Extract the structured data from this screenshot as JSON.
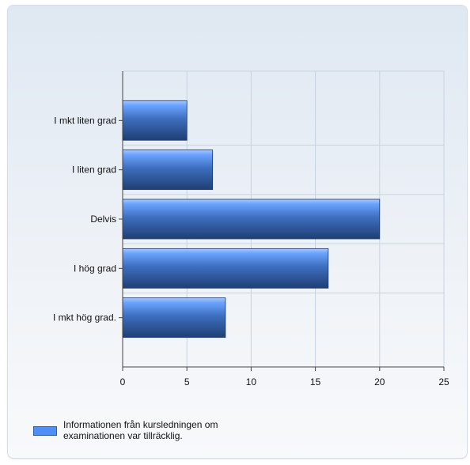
{
  "chart_data": {
    "type": "bar",
    "orientation": "horizontal",
    "categories": [
      "I mkt liten grad",
      "I liten grad",
      "Delvis",
      "I hög grad",
      "I mkt hög grad."
    ],
    "series": [
      {
        "name": "Informationen från kursledningen om examinationen var tillräcklig.",
        "values": [
          5,
          7,
          20,
          16,
          8
        ]
      }
    ],
    "xticks": [
      "0",
      "5",
      "10",
      "15",
      "20",
      "25"
    ],
    "xlim": [
      0,
      25
    ],
    "grid": true,
    "legend_position": "bottom-left",
    "colors": {
      "bar_top": "#6aa3ff",
      "bar_bottom": "#1f3f73",
      "grid": "#c8d3e0",
      "axis": "#444444"
    }
  }
}
